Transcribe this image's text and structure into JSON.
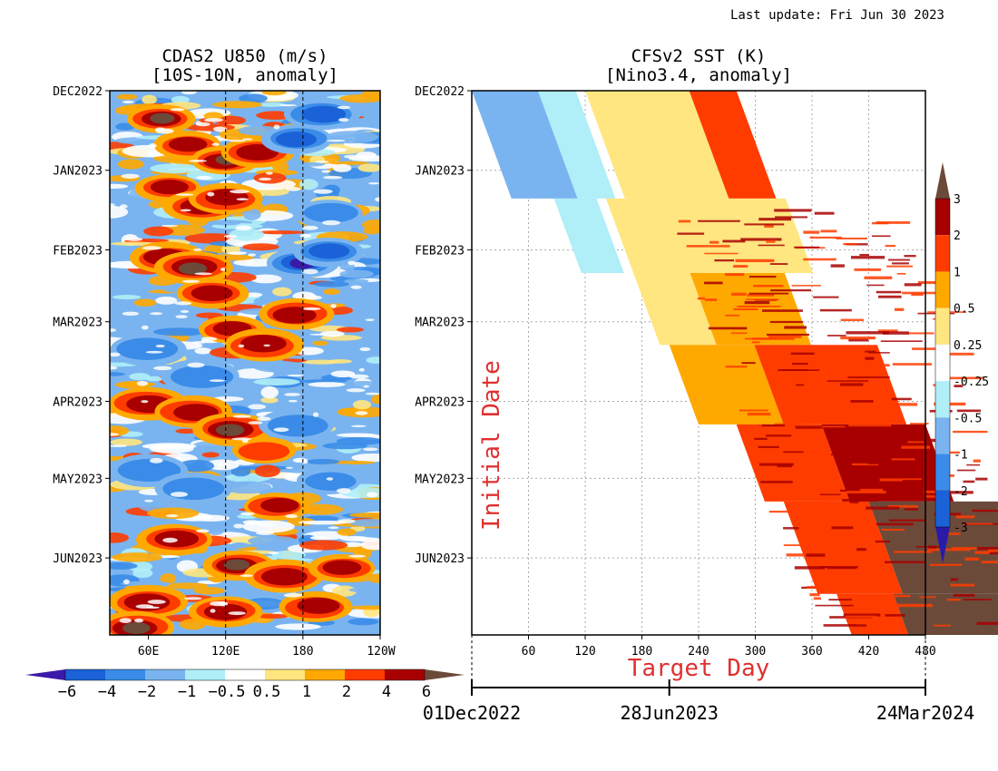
{
  "header": {
    "last_update": "Last update: Fri Jun 30 2023"
  },
  "chart_data": [
    {
      "type": "heatmap",
      "title": "CDAS2 U850 (m/s)",
      "subtitle": "[10S-10N, anomaly]",
      "xlabel": "",
      "ylabel": "",
      "x_ticks": [
        "60E",
        "120E",
        "180",
        "120W"
      ],
      "y_ticks": [
        "DEC2022",
        "JAN2023",
        "FEB2023",
        "MAR2023",
        "APR2023",
        "MAY2023",
        "JUN2023"
      ],
      "xlim": [
        "30E",
        "120W"
      ],
      "ylim": [
        "DEC2022",
        "JUL2023"
      ],
      "reference_lines": [
        "120E",
        "180"
      ],
      "colorbar": {
        "levels": [
          "-6",
          "-4",
          "-2",
          "-1",
          "-0.5",
          "0.5",
          "1",
          "2",
          "4",
          "6"
        ],
        "tick_labels": [
          "-6",
          "-4",
          "-2",
          "-1",
          "-0.5",
          "0.5",
          "1",
          "2",
          "4",
          "6"
        ],
        "colors": [
          "#3a1aa8",
          "#1b62d8",
          "#3a8ce8",
          "#7ab4f0",
          "#b0eef8",
          "#ffffff",
          "#ffe680",
          "#ffa800",
          "#ff3c00",
          "#a80000",
          "#6b4a3a"
        ]
      },
      "anomaly_patches": [
        {
          "lon": 70,
          "date": "2022-12-12",
          "value": 6
        },
        {
          "lon": 90,
          "date": "2022-12-22",
          "value": 4
        },
        {
          "lon": 120,
          "date": "2022-12-28",
          "value": 6
        },
        {
          "lon": 145,
          "date": "2022-12-25",
          "value": 4
        },
        {
          "lon": 75,
          "date": "2023-01-08",
          "value": 4
        },
        {
          "lon": 100,
          "date": "2023-01-15",
          "value": 4
        },
        {
          "lon": 120,
          "date": "2023-01-12",
          "value": 4
        },
        {
          "lon": 175,
          "date": "2022-12-20",
          "value": -4
        },
        {
          "lon": 195,
          "date": "2022-12-10",
          "value": -4
        },
        {
          "lon": 200,
          "date": "2023-01-18",
          "value": -2
        },
        {
          "lon": 75,
          "date": "2023-02-04",
          "value": 4
        },
        {
          "lon": 95,
          "date": "2023-02-08",
          "value": 6
        },
        {
          "lon": 110,
          "date": "2023-02-18",
          "value": 4
        },
        {
          "lon": 180,
          "date": "2023-02-06",
          "value": -6
        },
        {
          "lon": 200,
          "date": "2023-02-02",
          "value": -4
        },
        {
          "lon": 125,
          "date": "2023-03-04",
          "value": 4
        },
        {
          "lon": 150,
          "date": "2023-03-10",
          "value": 4
        },
        {
          "lon": 175,
          "date": "2023-02-26",
          "value": 4
        },
        {
          "lon": 60,
          "date": "2023-03-12",
          "value": -2
        },
        {
          "lon": 100,
          "date": "2023-03-22",
          "value": -2
        },
        {
          "lon": 60,
          "date": "2023-04-02",
          "value": 4
        },
        {
          "lon": 95,
          "date": "2023-04-05",
          "value": 4
        },
        {
          "lon": 125,
          "date": "2023-04-12",
          "value": 6
        },
        {
          "lon": 150,
          "date": "2023-04-20",
          "value": 2
        },
        {
          "lon": 175,
          "date": "2023-04-10",
          "value": -2
        },
        {
          "lon": 60,
          "date": "2023-04-28",
          "value": -2
        },
        {
          "lon": 95,
          "date": "2023-05-05",
          "value": -2
        },
        {
          "lon": 160,
          "date": "2023-05-12",
          "value": 4
        },
        {
          "lon": 200,
          "date": "2023-05-02",
          "value": -2
        },
        {
          "lon": 80,
          "date": "2023-05-25",
          "value": 4
        },
        {
          "lon": 130,
          "date": "2023-06-04",
          "value": 6
        },
        {
          "lon": 165,
          "date": "2023-06-08",
          "value": 4
        },
        {
          "lon": 210,
          "date": "2023-06-05",
          "value": 4
        },
        {
          "lon": 60,
          "date": "2023-06-18",
          "value": 4
        },
        {
          "lon": 120,
          "date": "2023-06-22",
          "value": 4
        },
        {
          "lon": 190,
          "date": "2023-06-20",
          "value": 4
        },
        {
          "lon": 50,
          "date": "2023-06-28",
          "value": 6
        }
      ]
    },
    {
      "type": "heatmap",
      "title": "CFSv2 SST (K)",
      "subtitle": "[Nino3.4, anomaly]",
      "xlabel": "Target Day",
      "ylabel": "Initial Date",
      "x_ticks": [
        "60",
        "120",
        "180",
        "240",
        "300",
        "360",
        "420",
        "480"
      ],
      "y_ticks": [
        "DEC2022",
        "JAN2023",
        "FEB2023",
        "MAR2023",
        "APR2023",
        "MAY2023",
        "JUN2023"
      ],
      "xlim": [
        0,
        480
      ],
      "ylim": [
        "DEC2022",
        "JUL2023"
      ],
      "date_axis": [
        "01Dec2022",
        "28Jun2023",
        "24Mar2024"
      ],
      "colorbar": {
        "levels": [
          "-3",
          "-2",
          "-1",
          "-0.5",
          "-0.25",
          "0.25",
          "0.5",
          "1",
          "2",
          "3"
        ],
        "tick_labels": [
          "3",
          "2",
          "1",
          "0.5",
          "0.25",
          "-0.25",
          "-0.5",
          "-1",
          "-2",
          "-3"
        ],
        "colors": [
          "#2a1aa8",
          "#1b62d8",
          "#3a8ce8",
          "#7ab4f0",
          "#b0eef8",
          "#ffffff",
          "#ffe680",
          "#ffa800",
          "#ff3c00",
          "#a80000",
          "#6b4a3a"
        ]
      },
      "forecast_bands": [
        {
          "initial": "2022-12-01",
          "days": [
            0,
            70
          ],
          "value": -0.5
        },
        {
          "initial": "2022-12-01",
          "days": [
            70,
            110
          ],
          "value": -0.25
        },
        {
          "initial": "2022-12-01",
          "days": [
            120,
            230
          ],
          "value": 0.25
        },
        {
          "initial": "2022-12-01",
          "days": [
            230,
            280
          ],
          "value": 1
        },
        {
          "initial": "2023-01-12",
          "days": [
            45,
            90
          ],
          "value": -0.25
        },
        {
          "initial": "2023-01-12",
          "days": [
            100,
            290
          ],
          "value": 0.25
        },
        {
          "initial": "2023-02-10",
          "days": [
            100,
            160
          ],
          "value": 0.25
        },
        {
          "initial": "2023-02-10",
          "days": [
            160,
            260
          ],
          "value": 0.5
        },
        {
          "initial": "2023-03-10",
          "days": [
            110,
            200
          ],
          "value": 0.5
        },
        {
          "initial": "2023-03-10",
          "days": [
            200,
            330
          ],
          "value": 1
        },
        {
          "initial": "2023-04-10",
          "days": [
            150,
            240
          ],
          "value": 1
        },
        {
          "initial": "2023-04-10",
          "days": [
            240,
            350
          ],
          "value": 2
        },
        {
          "initial": "2023-05-10",
          "days": [
            170,
            260
          ],
          "value": 1
        },
        {
          "initial": "2023-05-10",
          "days": [
            260,
            400
          ],
          "value": 3
        },
        {
          "initial": "2023-06-15",
          "days": [
            190,
            250
          ],
          "value": 1
        },
        {
          "initial": "2023-06-15",
          "days": [
            250,
            440
          ],
          "value": 3
        }
      ]
    }
  ]
}
